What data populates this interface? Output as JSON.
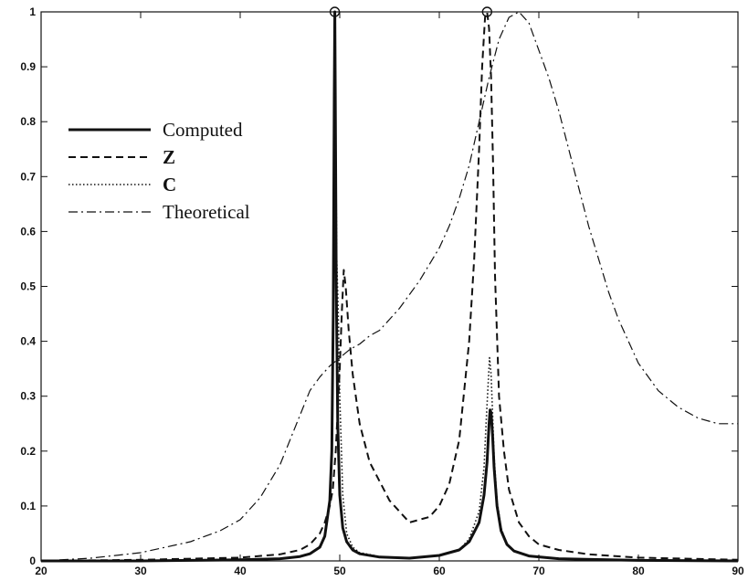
{
  "chart_data": {
    "type": "line",
    "title": "",
    "xlabel": "",
    "ylabel": "",
    "xlim": [
      20,
      90
    ],
    "ylim": [
      0,
      1
    ],
    "xticks": [
      "20",
      "30",
      "40",
      "50",
      "60",
      "70",
      "80",
      "90"
    ],
    "yticks": [
      "0",
      "0.1",
      "0.2",
      "0.3",
      "0.4",
      "0.5",
      "0.6",
      "0.7",
      "0.8",
      "0.9",
      "1"
    ],
    "grid": false,
    "legend_position": "upper-left",
    "series": [
      {
        "name": "Computed",
        "style": "solid-thick",
        "x": [
          20,
          30,
          40,
          44,
          46,
          47,
          48,
          48.5,
          49,
          49.2,
          49.35,
          49.45,
          49.5,
          49.55,
          49.65,
          49.8,
          50,
          50.3,
          50.7,
          51.3,
          52,
          54,
          57,
          60,
          62,
          63,
          64,
          64.5,
          64.8,
          65,
          65.1,
          65.2,
          65.35,
          65.5,
          65.8,
          66.2,
          66.8,
          67.5,
          69,
          72,
          80,
          90
        ],
        "y": [
          0,
          0,
          0.002,
          0.004,
          0.008,
          0.013,
          0.025,
          0.045,
          0.11,
          0.2,
          0.45,
          0.85,
          1.0,
          0.85,
          0.5,
          0.25,
          0.12,
          0.06,
          0.035,
          0.02,
          0.013,
          0.007,
          0.005,
          0.01,
          0.02,
          0.035,
          0.07,
          0.12,
          0.18,
          0.25,
          0.275,
          0.27,
          0.23,
          0.17,
          0.1,
          0.055,
          0.03,
          0.018,
          0.009,
          0.004,
          0.001,
          0
        ]
      },
      {
        "name": "Z",
        "style": "dashed",
        "x": [
          20,
          30,
          40,
          44,
          46,
          47,
          48,
          48.5,
          49,
          49.3,
          49.6,
          50,
          50.2,
          50.4,
          50.6,
          50.9,
          51.3,
          52,
          53,
          55,
          57,
          59,
          60,
          61,
          62,
          63,
          63.5,
          64,
          64.3,
          64.6,
          64.8,
          65,
          65.2,
          65.4,
          65.6,
          66,
          66.5,
          67,
          68,
          69,
          70,
          72,
          75,
          80,
          90
        ],
        "y": [
          0,
          0.002,
          0.006,
          0.012,
          0.02,
          0.03,
          0.05,
          0.07,
          0.1,
          0.13,
          0.2,
          0.35,
          0.45,
          0.53,
          0.5,
          0.42,
          0.34,
          0.25,
          0.18,
          0.11,
          0.07,
          0.08,
          0.1,
          0.14,
          0.22,
          0.4,
          0.55,
          0.75,
          0.9,
          0.99,
          1.0,
          0.97,
          0.88,
          0.72,
          0.52,
          0.3,
          0.2,
          0.13,
          0.07,
          0.045,
          0.03,
          0.02,
          0.012,
          0.006,
          0.002
        ]
      },
      {
        "name": "C",
        "style": "dotted",
        "x": [
          20,
          30,
          40,
          44,
          46,
          47,
          48,
          48.5,
          49,
          49.2,
          49.35,
          49.45,
          49.5,
          49.55,
          49.7,
          49.85,
          50,
          50.3,
          50.7,
          51.3,
          52,
          54,
          57,
          60,
          62,
          63,
          64,
          64.5,
          64.7,
          64.9,
          65.05,
          65.2,
          65.35,
          65.5,
          65.8,
          66.2,
          66.8,
          67.5,
          69,
          72,
          80,
          90
        ],
        "y": [
          0,
          0,
          0.002,
          0.004,
          0.008,
          0.013,
          0.025,
          0.045,
          0.11,
          0.2,
          0.45,
          0.85,
          1.0,
          0.85,
          0.55,
          0.45,
          0.3,
          0.12,
          0.05,
          0.025,
          0.015,
          0.008,
          0.005,
          0.01,
          0.02,
          0.04,
          0.09,
          0.17,
          0.25,
          0.32,
          0.37,
          0.34,
          0.27,
          0.19,
          0.11,
          0.06,
          0.03,
          0.018,
          0.009,
          0.004,
          0.001,
          0
        ]
      },
      {
        "name": "Theoretical",
        "style": "dashdot",
        "x": [
          20,
          25,
          30,
          35,
          38,
          40,
          42,
          44,
          46,
          47,
          48,
          49,
          50,
          51,
          52,
          53,
          54,
          55,
          56,
          57,
          58,
          59,
          60,
          61,
          62,
          63,
          64,
          65,
          66,
          67,
          68,
          69,
          70,
          71,
          72,
          73,
          74,
          75,
          76,
          77,
          78,
          79,
          80,
          82,
          84,
          86,
          88,
          90
        ],
        "y": [
          0,
          0.005,
          0.015,
          0.035,
          0.055,
          0.075,
          0.115,
          0.175,
          0.265,
          0.31,
          0.335,
          0.355,
          0.37,
          0.385,
          0.395,
          0.41,
          0.42,
          0.44,
          0.46,
          0.485,
          0.51,
          0.54,
          0.57,
          0.61,
          0.66,
          0.72,
          0.8,
          0.88,
          0.95,
          0.99,
          1.0,
          0.98,
          0.93,
          0.88,
          0.82,
          0.75,
          0.68,
          0.61,
          0.55,
          0.49,
          0.44,
          0.4,
          0.36,
          0.31,
          0.28,
          0.26,
          0.25,
          0.25
        ]
      }
    ],
    "peak_markers": [
      {
        "x": 49.5,
        "y": 1
      },
      {
        "x": 64.8,
        "y": 1
      }
    ]
  }
}
